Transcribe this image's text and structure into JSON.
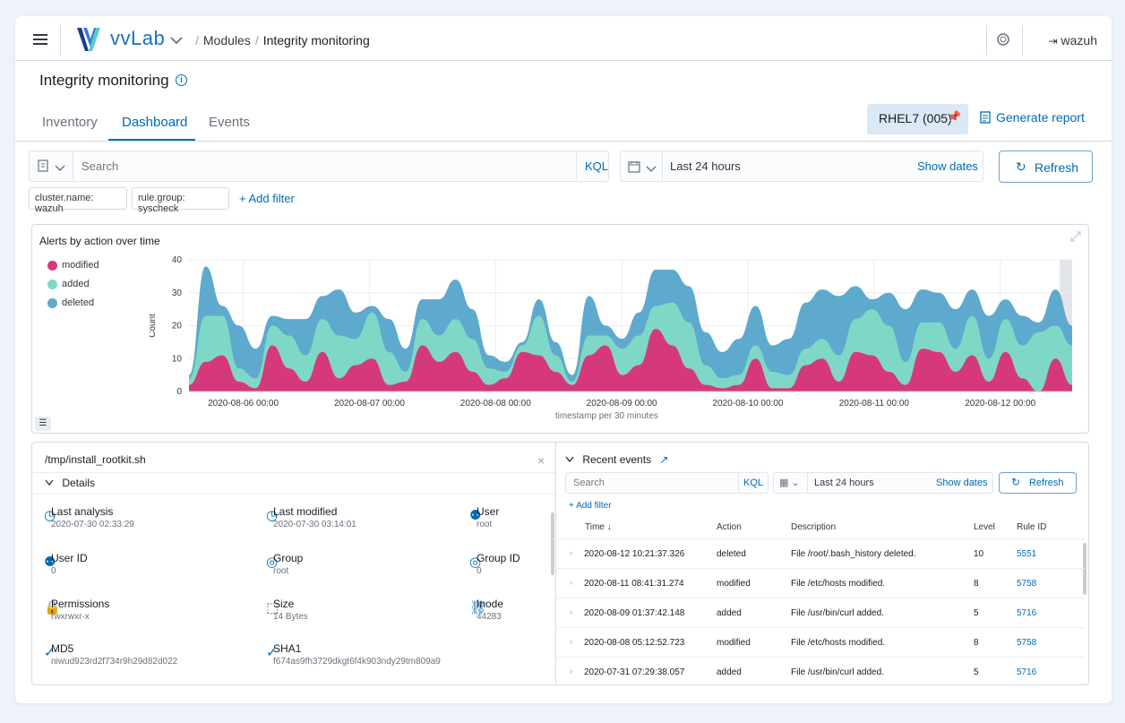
{
  "header": {
    "brand": "vvLab",
    "breadcrumb_modules": "Modules",
    "breadcrumb_current": "Integrity monitoring",
    "user": "wazuh"
  },
  "page": {
    "title": "Integrity monitoring",
    "tabs": [
      "Inventory",
      "Dashboard",
      "Events"
    ],
    "active_tab": "Dashboard",
    "agent_button": "RHEL7 (005)",
    "generate_report": "Generate report"
  },
  "query_bar": {
    "search_placeholder": "Search",
    "kql": "KQL",
    "time_range": "Last 24 hours",
    "show_dates": "Show dates",
    "refresh": "Refresh",
    "filters": [
      "cluster.name: wazuh",
      "rule.group: syscheck"
    ],
    "add_filter": "+ Add filter"
  },
  "chart_panel": {
    "title": "Alerts by action over time"
  },
  "chart_data": {
    "type": "area",
    "title": "Alerts by action over time",
    "xlabel": "timestamp per 30 minutes",
    "ylabel": "Count",
    "ylim": [
      0,
      40
    ],
    "yticks": [
      "0",
      "10",
      "20",
      "30",
      "40"
    ],
    "xticks": [
      "2020-08-06 00:00",
      "2020-08-07 00:00",
      "2020-08-08 00:00",
      "2020-08-09 00:00",
      "2020-08-10 00:00",
      "2020-08-11 00:00",
      "2020-08-12 00:00"
    ],
    "stacked": true,
    "legend_position": "left",
    "grid": true,
    "series": [
      {
        "name": "modified",
        "color": "#d6397b",
        "values": [
          2,
          9,
          11,
          3,
          1,
          14,
          7,
          3,
          12,
          4,
          8,
          10,
          2,
          3,
          14,
          9,
          12,
          6,
          2,
          4,
          12,
          11,
          6,
          2,
          11,
          14,
          5,
          8,
          19,
          14,
          7,
          2,
          1,
          2,
          10,
          1,
          1,
          8,
          10,
          3,
          12,
          11,
          6,
          2,
          13,
          12,
          6,
          11,
          3,
          12,
          4,
          0,
          10,
          2
        ]
      },
      {
        "name": "added",
        "color": "#7fd8c6",
        "values": [
          2,
          14,
          12,
          4,
          3,
          6,
          10,
          8,
          10,
          13,
          8,
          14,
          10,
          3,
          8,
          8,
          10,
          10,
          5,
          2,
          2,
          12,
          5,
          1,
          6,
          3,
          8,
          9,
          7,
          13,
          14,
          6,
          3,
          3,
          4,
          5,
          4,
          5,
          6,
          8,
          10,
          14,
          14,
          7,
          8,
          9,
          7,
          12,
          7,
          10,
          10,
          18,
          10,
          12
        ]
      },
      {
        "name": "deleted",
        "color": "#5ea9ce",
        "values": [
          1,
          15,
          3,
          13,
          9,
          3,
          5,
          11,
          7,
          14,
          8,
          2,
          10,
          7,
          6,
          11,
          12,
          9,
          4,
          3,
          1,
          5,
          4,
          2,
          12,
          3,
          3,
          7,
          11,
          10,
          11,
          10,
          8,
          11,
          12,
          8,
          11,
          14,
          15,
          18,
          10,
          3,
          10,
          16,
          10,
          9,
          12,
          8,
          13,
          6,
          9,
          3,
          11,
          6
        ]
      }
    ]
  },
  "file_panel": {
    "path": "/tmp/install_rootkit.sh",
    "details_label": "Details",
    "fields": [
      {
        "label": "Last analysis",
        "value": "2020-07-30 02:33:29",
        "icon": "clock-icon"
      },
      {
        "label": "Last modified",
        "value": "2020-07-30 03:14:01",
        "icon": "clock-icon"
      },
      {
        "label": "User",
        "value": "root",
        "icon": "user-icon"
      },
      {
        "label": "User ID",
        "value": "0",
        "icon": "user-icon"
      },
      {
        "label": "Group",
        "value": "root",
        "icon": "group-icon"
      },
      {
        "label": "Group ID",
        "value": "0",
        "icon": "group-icon"
      },
      {
        "label": "Permissions",
        "value": "rwxrwxr-x",
        "icon": "lock-icon"
      },
      {
        "label": "Size",
        "value": "14 Bytes",
        "icon": "size-icon"
      },
      {
        "label": "Inode",
        "value": "44283",
        "icon": "link-icon"
      },
      {
        "label": "MD5",
        "value": "niwud923rd2f734r9h29d82d022",
        "icon": "check-icon"
      },
      {
        "label": "SHA1",
        "value": "f674as9fh3729dkgt6f4k903ndy29tm809a9",
        "icon": "check-icon"
      }
    ]
  },
  "events_panel": {
    "title": "Recent events",
    "search_placeholder": "Search",
    "kql": "KQL",
    "time_range": "Last 24 hours",
    "show_dates": "Show dates",
    "refresh": "Refresh",
    "add_filter": "+ Add filter",
    "columns": [
      "Time ↓",
      "Action",
      "Description",
      "Level",
      "Rule ID"
    ],
    "rows": [
      {
        "time": "2020-08-12  10:21:37.326",
        "action": "deleted",
        "description": "File /root/.bash_history deleted.",
        "level": "10",
        "rule_id": "5551"
      },
      {
        "time": "2020-08-11  08:41:31.274",
        "action": "modified",
        "description": "File  /etc/hosts  modified.",
        "level": "8",
        "rule_id": "5758"
      },
      {
        "time": "2020-08-09  01:37:42.148",
        "action": "added",
        "description": "File  /usr/bin/curl  added.",
        "level": "5",
        "rule_id": "5716"
      },
      {
        "time": "2020-08-08  05:12:52.723",
        "action": "modified",
        "description": "File  /etc/hosts  modified.",
        "level": "8",
        "rule_id": "5758"
      },
      {
        "time": "2020-07-31  07:29:38.057",
        "action": "added",
        "description": "File  /usr/bin/curl  added.",
        "level": "5",
        "rule_id": "5716"
      }
    ]
  }
}
